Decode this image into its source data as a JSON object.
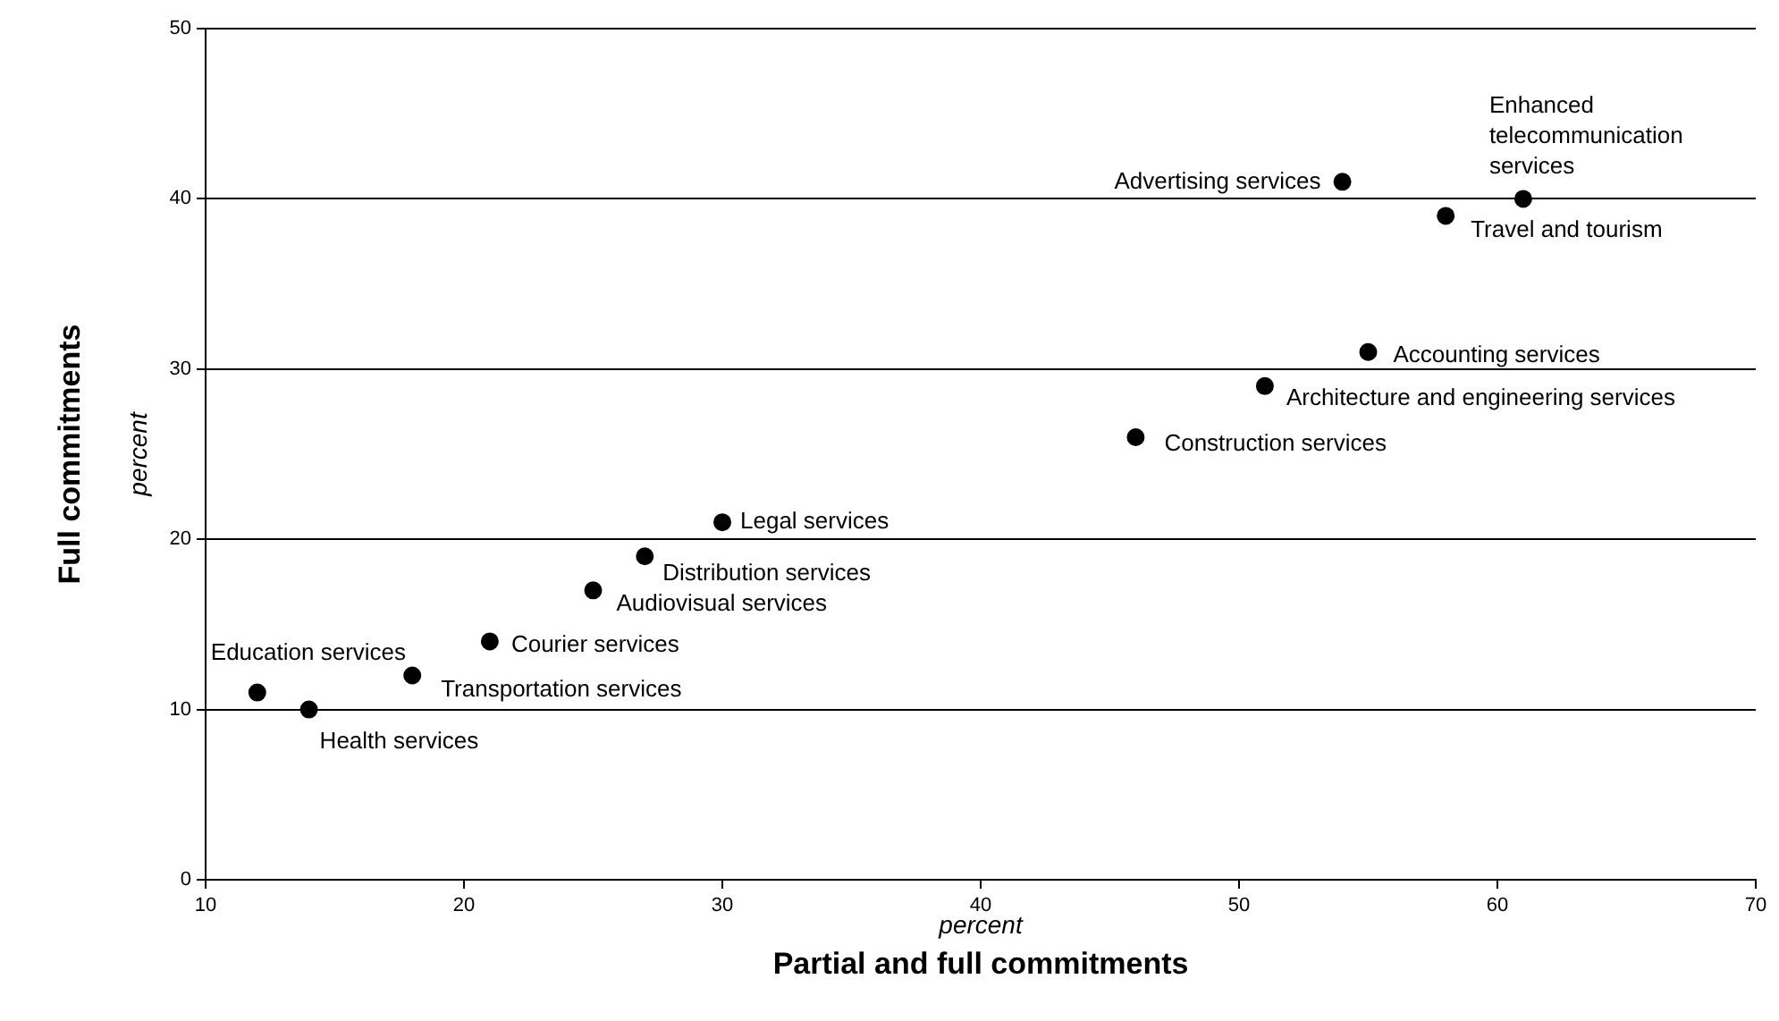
{
  "chart_data": {
    "type": "scatter",
    "xlabel": "Partial and full commitments",
    "ylabel": "Full commitments",
    "x": [
      12,
      14,
      18,
      21,
      25,
      27,
      30,
      46,
      51,
      55,
      58,
      54,
      61
    ],
    "series": [
      {
        "color": "#000000",
        "values": [
          11,
          10,
          12,
          14,
          17,
          19,
          21,
          26,
          29,
          31,
          39,
          41,
          40
        ]
      }
    ],
    "xlim": [
      10,
      70
    ],
    "xticks": [
      10,
      20,
      30,
      40,
      50,
      60,
      70
    ],
    "ylim": [
      0,
      50
    ],
    "yticks": [
      0,
      10,
      20,
      30,
      40,
      50
    ],
    "grid": "y",
    "legend": false,
    "marker": "circle",
    "annotations": [
      {
        "text": "Education services",
        "x": 12,
        "y": 11
      },
      {
        "text": "Health services",
        "x": 14,
        "y": 10
      },
      {
        "text": "Transportation services",
        "x": 18,
        "y": 12
      },
      {
        "text": "Courier services",
        "x": 21,
        "y": 14
      },
      {
        "text": "Audiovisual services",
        "x": 25,
        "y": 17
      },
      {
        "text": "Distribution services",
        "x": 27,
        "y": 19
      },
      {
        "text": "Legal services",
        "x": 30,
        "y": 21
      },
      {
        "text": "Construction services",
        "x": 46,
        "y": 26
      },
      {
        "text": "Architecture and engineering services",
        "x": 51,
        "y": 29
      },
      {
        "text": "Accounting services",
        "x": 55,
        "y": 31
      },
      {
        "text": "Travel and tourism",
        "x": 58,
        "y": 39
      },
      {
        "text": "Advertising services",
        "x": 54,
        "y": 41
      },
      {
        "text": "Enhanced telecommunication services",
        "x": 61,
        "y": 40
      },
      "percent",
      "percent"
    ]
  }
}
